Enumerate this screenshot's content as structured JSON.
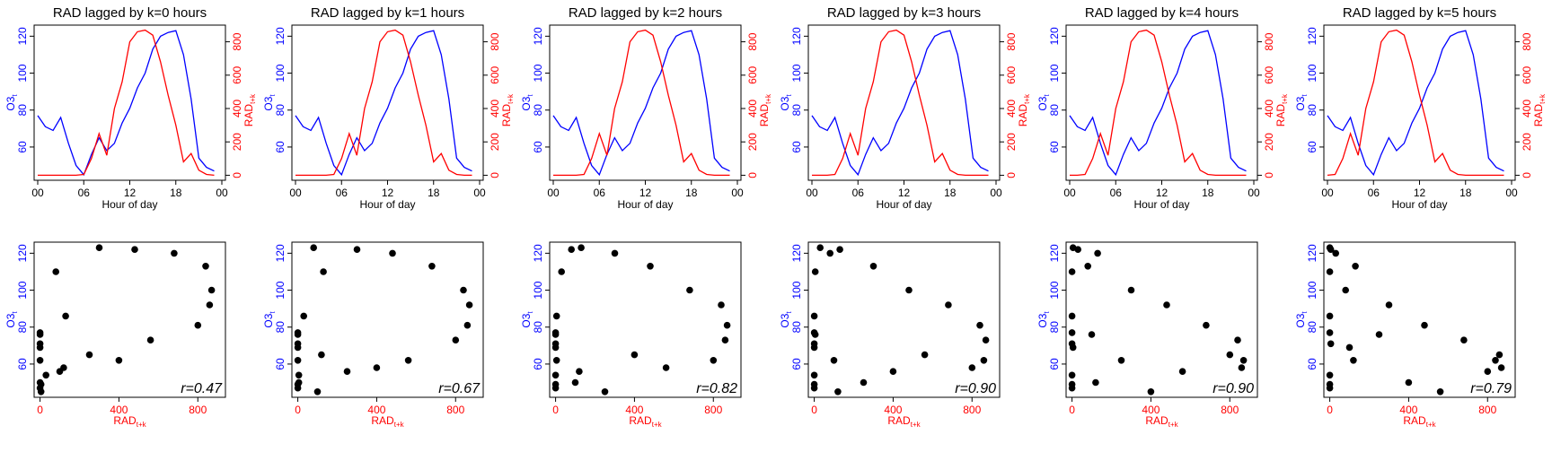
{
  "colors": {
    "o3": "#0000ff",
    "rad": "#ff0000",
    "points": "#000000"
  },
  "hours": [
    0,
    1,
    2,
    3,
    4,
    5,
    6,
    7,
    8,
    9,
    10,
    11,
    12,
    13,
    14,
    15,
    16,
    17,
    18,
    19,
    20,
    21,
    22,
    23
  ],
  "o3": [
    77,
    71,
    69,
    76,
    62,
    50,
    45,
    56,
    65,
    58,
    62,
    73,
    81,
    92,
    100,
    113,
    120,
    122,
    123,
    110,
    86,
    54,
    49,
    47
  ],
  "rad": [
    0,
    0,
    0,
    0,
    0,
    0,
    5,
    100,
    250,
    120,
    400,
    560,
    800,
    860,
    870,
    840,
    680,
    480,
    300,
    80,
    130,
    30,
    5,
    0
  ],
  "chart_data": [
    {
      "type": "line",
      "title": "RAD lagged by k=0 hours",
      "lag": 0,
      "r_label": "r=0.47"
    },
    {
      "type": "line",
      "title": "RAD lagged by k=1 hours",
      "lag": 1,
      "r_label": "r=0.67"
    },
    {
      "type": "line",
      "title": "RAD lagged by k=2 hours",
      "lag": 2,
      "r_label": "r=0.82"
    },
    {
      "type": "line",
      "title": "RAD lagged by k=3 hours",
      "lag": 3,
      "r_label": "r=0.90"
    },
    {
      "type": "line",
      "title": "RAD lagged by k=4 hours",
      "lag": 4,
      "r_label": "r=0.90"
    },
    {
      "type": "line",
      "title": "RAD lagged by k=5 hours",
      "lag": 5,
      "r_label": "r=0.79"
    }
  ],
  "axes": {
    "line_xlabel": "Hour of day",
    "line_xticks": [
      "00",
      "06",
      "12",
      "18",
      "00"
    ],
    "line_xtick_hours": [
      0,
      6,
      12,
      18,
      24
    ],
    "o3_ylabel_base": "O3",
    "o3_ylabel_sub": "t",
    "rad_ylabel_base": "RAD",
    "rad_ylabel_sub": "t+k",
    "o3_ylim": [
      42,
      126
    ],
    "o3_yticks": [
      60,
      80,
      100,
      120
    ],
    "rad_ylim": [
      -30,
      900
    ],
    "rad_yticks": [
      0,
      200,
      400,
      600,
      800
    ],
    "scatter_xlim": [
      -30,
      940
    ],
    "scatter_xticks": [
      0,
      400,
      800
    ],
    "scatter_ylim": [
      42,
      126
    ],
    "scatter_yticks": [
      60,
      80,
      100,
      120
    ]
  }
}
